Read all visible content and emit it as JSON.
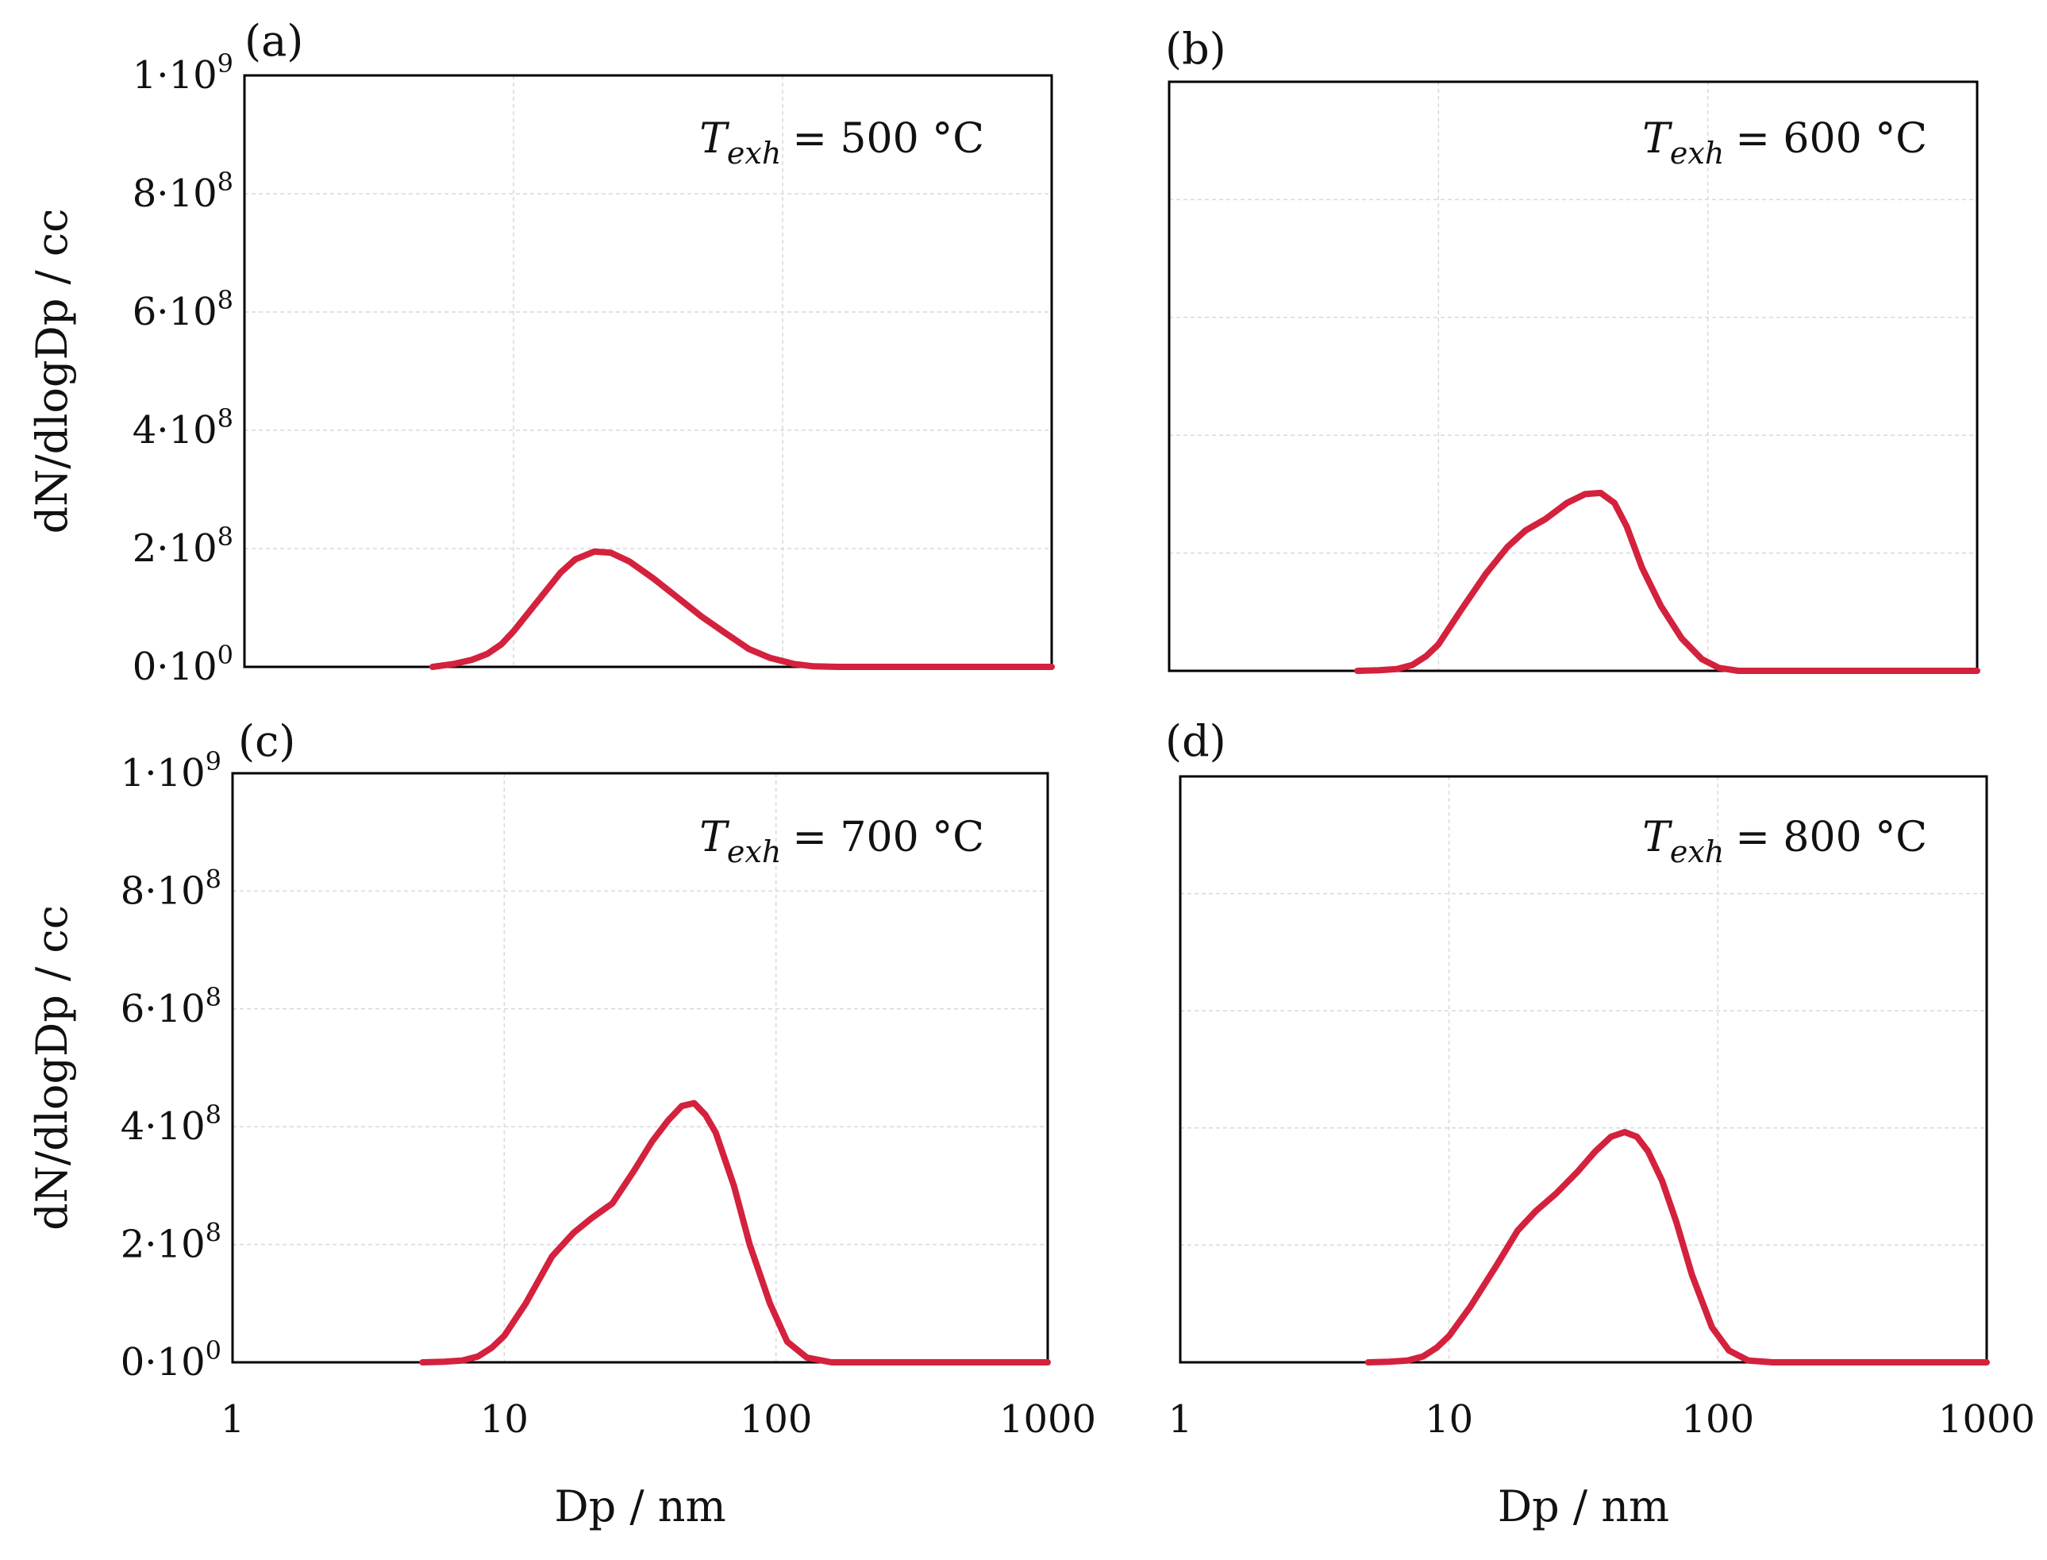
{
  "chart_data": [
    {
      "type": "line",
      "panel_label": "(a)",
      "annotation": {
        "symbol": "T",
        "subscript": "exh",
        "value": "= 500 °C"
      },
      "ylabel": "dN/dlogDp / cc",
      "xlabel": "",
      "xscale": "log",
      "xlim": [
        1,
        1000
      ],
      "ylim": [
        0,
        1000000000
      ],
      "x_ticks": [],
      "y_ticks": [
        {
          "base": "0·10",
          "exp": "0"
        },
        {
          "base": "2·10",
          "exp": "8"
        },
        {
          "base": "4·10",
          "exp": "8"
        },
        {
          "base": "6·10",
          "exp": "8"
        },
        {
          "base": "8·10",
          "exp": "8"
        },
        {
          "base": "1·10",
          "exp": "9"
        }
      ],
      "series": [
        {
          "name": "Texh = 500 °C",
          "color": "#d4213d",
          "x": [
            5,
            6,
            7,
            8,
            9,
            10,
            12,
            15,
            17,
            20,
            23,
            27,
            33,
            40,
            50,
            60,
            75,
            90,
            110,
            130,
            160,
            200,
            300,
            500,
            1000
          ],
          "y": [
            0,
            5000000,
            12000000,
            22000000,
            38000000,
            60000000,
            105000000,
            160000000,
            182000000,
            195000000,
            193000000,
            178000000,
            150000000,
            120000000,
            85000000,
            60000000,
            30000000,
            15000000,
            5000000,
            1000000,
            0,
            0,
            0,
            0,
            0
          ]
        }
      ]
    },
    {
      "type": "line",
      "panel_label": "(b)",
      "annotation": {
        "symbol": "T",
        "subscript": "exh",
        "value": "= 600 °C"
      },
      "ylabel": "",
      "xlabel": "",
      "xscale": "log",
      "xlim": [
        1,
        1000
      ],
      "ylim": [
        0,
        1000000000
      ],
      "x_ticks": [],
      "y_ticks": [],
      "series": [
        {
          "name": "Texh = 600 °C",
          "color": "#d4213d",
          "x": [
            5,
            6,
            7,
            8,
            9,
            10,
            12,
            15,
            18,
            21,
            25,
            30,
            35,
            40,
            45,
            50,
            57,
            67,
            80,
            95,
            110,
            130,
            160,
            200,
            300,
            500,
            1000
          ],
          "y": [
            0,
            1000000,
            3000000,
            10000000,
            25000000,
            45000000,
            100000000,
            165000000,
            210000000,
            238000000,
            258000000,
            285000000,
            300000000,
            302000000,
            285000000,
            245000000,
            175000000,
            110000000,
            55000000,
            20000000,
            5000000,
            0,
            0,
            0,
            0,
            0,
            0
          ]
        }
      ]
    },
    {
      "type": "line",
      "panel_label": "(c)",
      "annotation": {
        "symbol": "T",
        "subscript": "exh",
        "value": "= 700 °C"
      },
      "ylabel": "dN/dlogDp / cc",
      "xlabel": "Dp / nm",
      "xscale": "log",
      "xlim": [
        1,
        1000
      ],
      "ylim": [
        0,
        1000000000
      ],
      "x_ticks": [
        "1",
        "10",
        "100",
        "1000"
      ],
      "y_ticks": [
        {
          "base": "0·10",
          "exp": "0"
        },
        {
          "base": "2·10",
          "exp": "8"
        },
        {
          "base": "4·10",
          "exp": "8"
        },
        {
          "base": "6·10",
          "exp": "8"
        },
        {
          "base": "8·10",
          "exp": "8"
        },
        {
          "base": "1·10",
          "exp": "9"
        }
      ],
      "series": [
        {
          "name": "Texh = 700 °C",
          "color": "#d4213d",
          "x": [
            5,
            6,
            7,
            8,
            9,
            10,
            12,
            15,
            18,
            21,
            25,
            30,
            35,
            40,
            45,
            50,
            55,
            60,
            70,
            80,
            95,
            110,
            130,
            160,
            200,
            300,
            500,
            1000
          ],
          "y": [
            0,
            1000000,
            3000000,
            10000000,
            25000000,
            45000000,
            100000000,
            180000000,
            220000000,
            245000000,
            270000000,
            325000000,
            375000000,
            410000000,
            435000000,
            440000000,
            420000000,
            390000000,
            300000000,
            200000000,
            100000000,
            35000000,
            8000000,
            0,
            0,
            0,
            0,
            0
          ]
        }
      ]
    },
    {
      "type": "line",
      "panel_label": "(d)",
      "annotation": {
        "symbol": "T",
        "subscript": "exh",
        "value": "= 800 °C"
      },
      "ylabel": "",
      "xlabel": "Dp / nm",
      "xscale": "log",
      "xlim": [
        1,
        1000
      ],
      "ylim": [
        0,
        1000000000
      ],
      "x_ticks": [
        "1",
        "10",
        "100",
        "1000"
      ],
      "y_ticks": [],
      "series": [
        {
          "name": "Texh = 800 °C",
          "color": "#d4213d",
          "x": [
            5,
            6,
            7,
            8,
            9,
            10,
            12,
            15,
            18,
            21,
            25,
            30,
            35,
            40,
            45,
            50,
            55,
            62,
            70,
            80,
            95,
            110,
            130,
            160,
            200,
            300,
            500,
            1000
          ],
          "y": [
            0,
            1000000,
            3000000,
            10000000,
            25000000,
            45000000,
            95000000,
            165000000,
            225000000,
            258000000,
            288000000,
            325000000,
            360000000,
            385000000,
            393000000,
            385000000,
            360000000,
            310000000,
            240000000,
            150000000,
            60000000,
            20000000,
            3000000,
            0,
            0,
            0,
            0,
            0
          ]
        }
      ]
    }
  ]
}
